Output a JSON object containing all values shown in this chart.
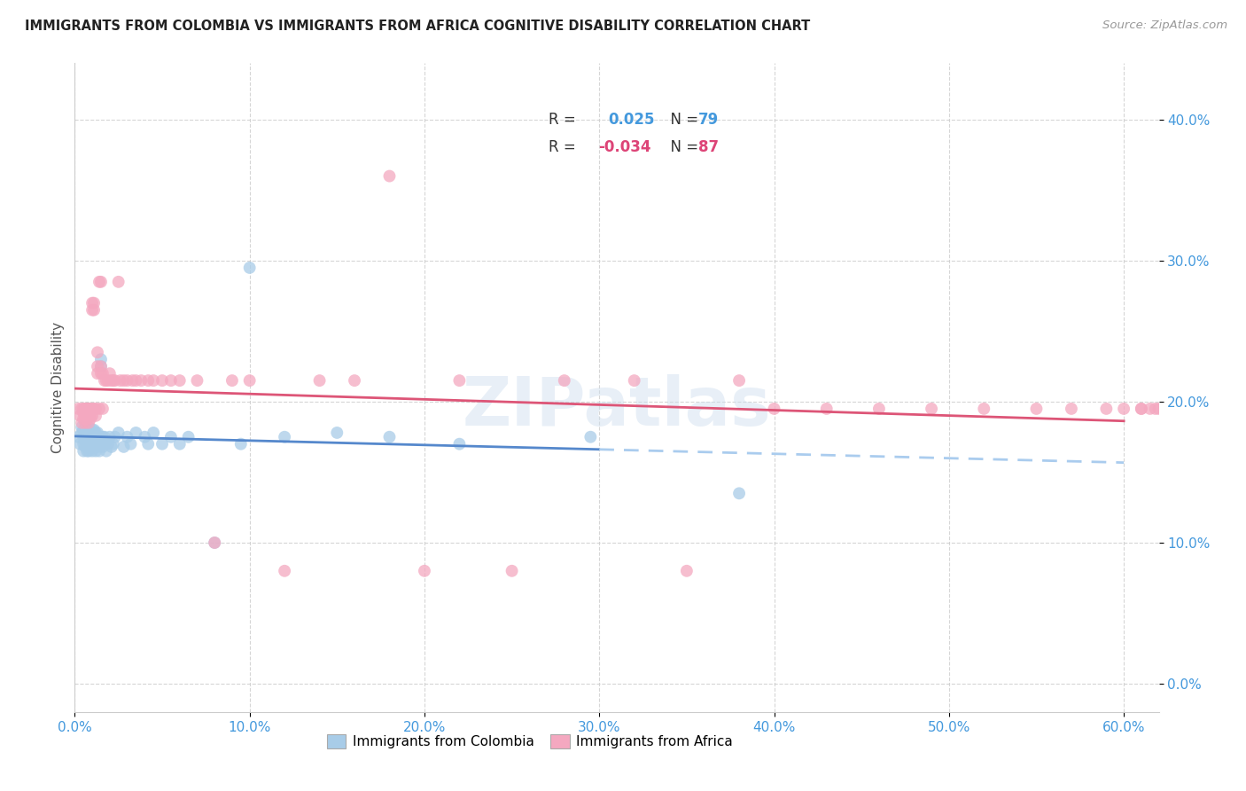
{
  "title": "IMMIGRANTS FROM COLOMBIA VS IMMIGRANTS FROM AFRICA COGNITIVE DISABILITY CORRELATION CHART",
  "source": "Source: ZipAtlas.com",
  "xlim": [
    0.0,
    0.62
  ],
  "ylim": [
    -0.02,
    0.44
  ],
  "ylabel": "Cognitive Disability",
  "R1": "0.025",
  "N1": "79",
  "R2": "-0.034",
  "N2": "87",
  "color_colombia": "#a8cce8",
  "color_africa": "#f4a8c0",
  "line_color_colombia": "#5588cc",
  "line_color_africa": "#dd5577",
  "line_color_dashed": "#aaccee",
  "watermark": "ZIPatlas",
  "colombia_x": [
    0.002,
    0.003,
    0.004,
    0.004,
    0.005,
    0.005,
    0.005,
    0.005,
    0.006,
    0.006,
    0.006,
    0.007,
    0.007,
    0.007,
    0.007,
    0.008,
    0.008,
    0.008,
    0.008,
    0.008,
    0.009,
    0.009,
    0.009,
    0.009,
    0.01,
    0.01,
    0.01,
    0.01,
    0.01,
    0.01,
    0.01,
    0.011,
    0.011,
    0.011,
    0.012,
    0.012,
    0.012,
    0.012,
    0.013,
    0.013,
    0.013,
    0.014,
    0.014,
    0.014,
    0.015,
    0.015,
    0.015,
    0.015,
    0.016,
    0.016,
    0.017,
    0.018,
    0.018,
    0.019,
    0.02,
    0.021,
    0.022,
    0.023,
    0.025,
    0.028,
    0.03,
    0.032,
    0.035,
    0.04,
    0.042,
    0.045,
    0.05,
    0.055,
    0.06,
    0.065,
    0.08,
    0.095,
    0.1,
    0.12,
    0.15,
    0.18,
    0.22,
    0.295,
    0.38
  ],
  "colombia_y": [
    0.175,
    0.17,
    0.178,
    0.182,
    0.17,
    0.175,
    0.165,
    0.18,
    0.172,
    0.178,
    0.168,
    0.175,
    0.17,
    0.18,
    0.165,
    0.175,
    0.17,
    0.178,
    0.165,
    0.182,
    0.17,
    0.175,
    0.168,
    0.178,
    0.175,
    0.18,
    0.17,
    0.165,
    0.178,
    0.172,
    0.168,
    0.175,
    0.17,
    0.18,
    0.175,
    0.165,
    0.178,
    0.17,
    0.172,
    0.178,
    0.168,
    0.175,
    0.17,
    0.165,
    0.23,
    0.225,
    0.175,
    0.17,
    0.175,
    0.168,
    0.175,
    0.172,
    0.165,
    0.17,
    0.175,
    0.168,
    0.17,
    0.175,
    0.178,
    0.168,
    0.175,
    0.17,
    0.178,
    0.175,
    0.17,
    0.178,
    0.17,
    0.175,
    0.17,
    0.175,
    0.1,
    0.17,
    0.295,
    0.175,
    0.178,
    0.175,
    0.17,
    0.175,
    0.135
  ],
  "africa_x": [
    0.002,
    0.003,
    0.004,
    0.004,
    0.005,
    0.005,
    0.005,
    0.006,
    0.006,
    0.006,
    0.007,
    0.007,
    0.007,
    0.007,
    0.008,
    0.008,
    0.008,
    0.009,
    0.009,
    0.009,
    0.01,
    0.01,
    0.01,
    0.01,
    0.011,
    0.011,
    0.011,
    0.012,
    0.012,
    0.013,
    0.013,
    0.013,
    0.014,
    0.014,
    0.015,
    0.015,
    0.015,
    0.016,
    0.016,
    0.017,
    0.018,
    0.019,
    0.02,
    0.021,
    0.022,
    0.023,
    0.025,
    0.026,
    0.028,
    0.03,
    0.033,
    0.035,
    0.038,
    0.042,
    0.045,
    0.05,
    0.055,
    0.06,
    0.07,
    0.08,
    0.09,
    0.1,
    0.12,
    0.14,
    0.16,
    0.18,
    0.2,
    0.22,
    0.25,
    0.28,
    0.32,
    0.35,
    0.38,
    0.4,
    0.43,
    0.46,
    0.49,
    0.52,
    0.55,
    0.57,
    0.59,
    0.6,
    0.61,
    0.61,
    0.615,
    0.618,
    0.62
  ],
  "africa_y": [
    0.195,
    0.19,
    0.195,
    0.185,
    0.195,
    0.192,
    0.188,
    0.195,
    0.19,
    0.185,
    0.195,
    0.188,
    0.192,
    0.195,
    0.195,
    0.19,
    0.185,
    0.195,
    0.19,
    0.188,
    0.265,
    0.27,
    0.195,
    0.19,
    0.195,
    0.265,
    0.27,
    0.195,
    0.19,
    0.235,
    0.225,
    0.22,
    0.285,
    0.195,
    0.285,
    0.225,
    0.22,
    0.195,
    0.22,
    0.215,
    0.215,
    0.215,
    0.22,
    0.215,
    0.215,
    0.215,
    0.285,
    0.215,
    0.215,
    0.215,
    0.215,
    0.215,
    0.215,
    0.215,
    0.215,
    0.215,
    0.215,
    0.215,
    0.215,
    0.1,
    0.215,
    0.215,
    0.08,
    0.215,
    0.215,
    0.36,
    0.08,
    0.215,
    0.08,
    0.215,
    0.215,
    0.08,
    0.215,
    0.195,
    0.195,
    0.195,
    0.195,
    0.195,
    0.195,
    0.195,
    0.195,
    0.195,
    0.195,
    0.195,
    0.195,
    0.195,
    0.195
  ]
}
